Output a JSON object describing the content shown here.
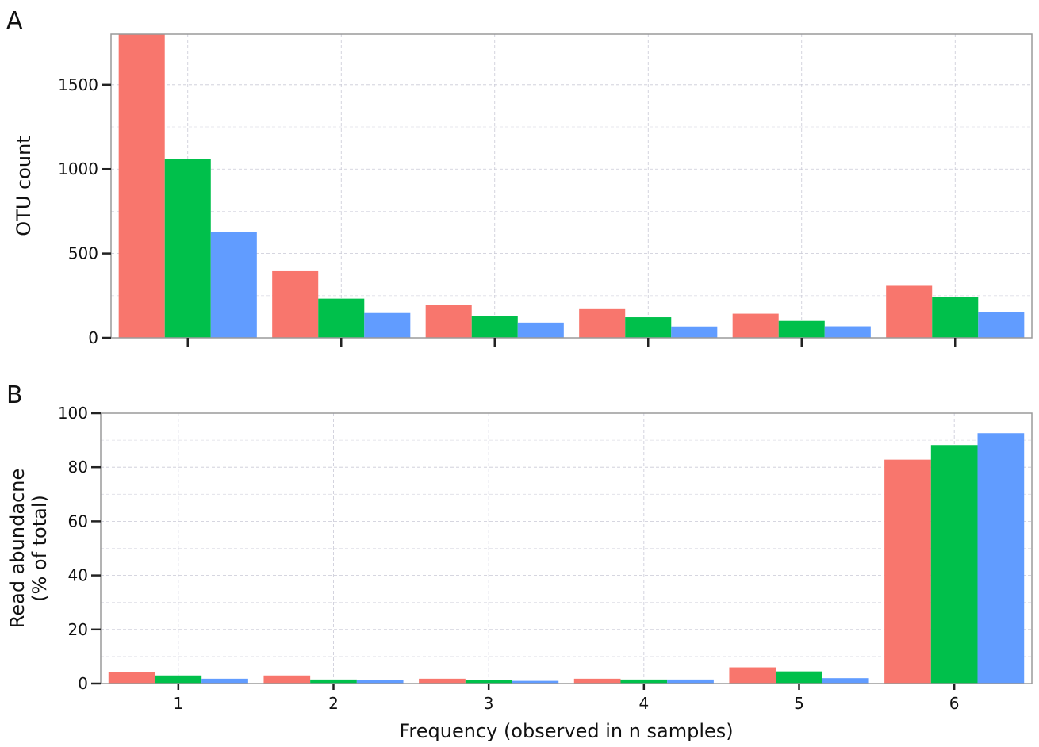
{
  "chart_data": [
    {
      "panel": "A",
      "type": "bar",
      "categories": [
        "1",
        "2",
        "3",
        "4",
        "5",
        "6"
      ],
      "series": [
        {
          "values": [
            1800,
            395,
            195,
            170,
            143,
            308
          ]
        },
        {
          "values": [
            1058,
            232,
            127,
            122,
            100,
            242
          ]
        },
        {
          "values": [
            628,
            147,
            90,
            67,
            68,
            153
          ]
        }
      ],
      "ylabel": "OTU count",
      "xlabel": "",
      "ylim": [
        0,
        1800
      ],
      "yticks": [
        0,
        500,
        1000,
        1500
      ],
      "grid": true
    },
    {
      "panel": "B",
      "type": "bar",
      "categories": [
        "1",
        "2",
        "3",
        "4",
        "5",
        "6"
      ],
      "series": [
        {
          "values": [
            4.3,
            3.0,
            1.8,
            1.8,
            6.0,
            82.8
          ]
        },
        {
          "values": [
            3.0,
            1.5,
            1.3,
            1.5,
            4.5,
            88.2
          ]
        },
        {
          "values": [
            1.8,
            1.2,
            1.0,
            1.5,
            2.0,
            92.6
          ]
        }
      ],
      "ylabel": [
        "Read abundacne",
        "(% of total)"
      ],
      "xlabel": "Frequency (observed in n samples)",
      "ylim": [
        0,
        100
      ],
      "yticks": [
        0,
        20,
        40,
        60,
        80,
        100
      ],
      "grid": true
    }
  ],
  "colors": [
    "#f8766d",
    "#00c04b",
    "#619cff"
  ]
}
